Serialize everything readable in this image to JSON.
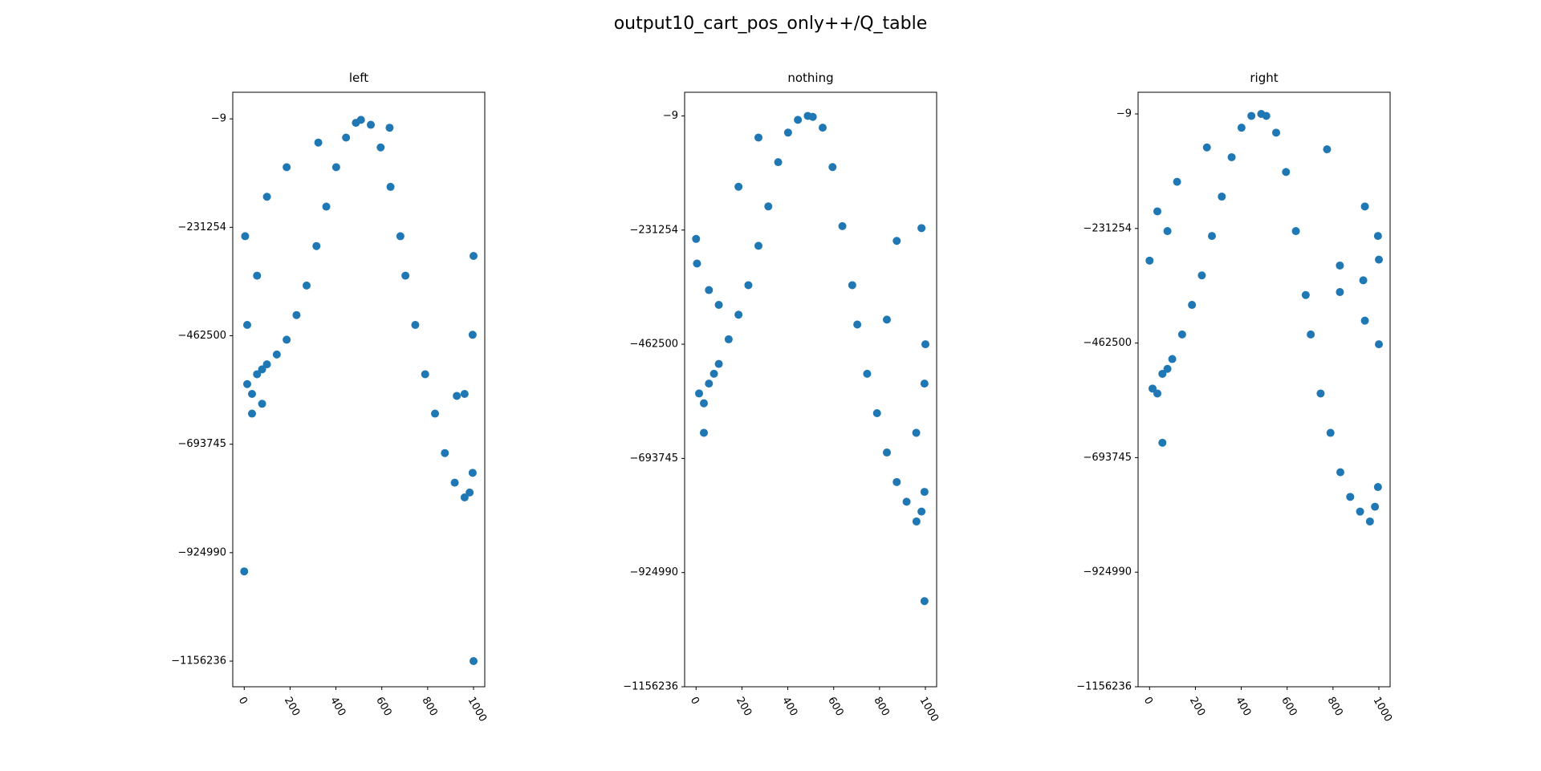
{
  "title": "output10_cart_pos_only++/Q_table",
  "chart_data": [
    {
      "type": "scatter",
      "title": "left",
      "color": "#1f77b4",
      "xlim": [
        -50,
        1049
      ],
      "ylim": [
        -1210900,
        56750
      ],
      "xticks": [
        0,
        200,
        400,
        600,
        800,
        1000
      ],
      "yticks": [
        {
          "value": -9,
          "label": "−9"
        },
        {
          "value": -231254,
          "label": "−231254"
        },
        {
          "value": -462500,
          "label": "−462500"
        },
        {
          "value": -693745,
          "label": "−693745"
        },
        {
          "value": -924990,
          "label": "−924990"
        },
        {
          "value": -1156236,
          "label": "−1156236"
        }
      ],
      "x": [
        13,
        34,
        56,
        78,
        99,
        142,
        185,
        228,
        272,
        315,
        358,
        401,
        444,
        487,
        509,
        552,
        595,
        638,
        681,
        703,
        746,
        789,
        832,
        875,
        918,
        961,
        983,
        996,
        0,
        1000,
        1000,
        4,
        13,
        56,
        99,
        185,
        323,
        634,
        996,
        961,
        927,
        34,
        78
      ],
      "values": [
        -565500,
        -586500,
        -544500,
        -534000,
        -523400,
        -502400,
        -470900,
        -418300,
        -355300,
        -271200,
        -187100,
        -103000,
        -39900,
        -8400,
        -2100,
        -12600,
        -60900,
        -145000,
        -250200,
        -334300,
        -439400,
        -544500,
        -628500,
        -712600,
        -775700,
        -807200,
        -796700,
        -754700,
        -964900,
        -1156200,
        -292200,
        -250200,
        -439400,
        -334300,
        -166100,
        -103000,
        -50500,
        -18900,
        -460400,
        -586500,
        -590700,
        -628500,
        -607500
      ]
    },
    {
      "type": "scatter",
      "title": "nothing",
      "color": "#1f77b4",
      "xlim": [
        -50,
        1049
      ],
      "ylim": [
        -1156236,
        47840
      ],
      "xticks": [
        0,
        200,
        400,
        600,
        800,
        1000
      ],
      "yticks": [
        {
          "value": -9,
          "label": "−9"
        },
        {
          "value": -231254,
          "label": "−231254"
        },
        {
          "value": -462500,
          "label": "−462500"
        },
        {
          "value": -693745,
          "label": "−693745"
        },
        {
          "value": -924990,
          "label": "−924990"
        },
        {
          "value": -1156236,
          "label": "−1156236"
        }
      ],
      "x": [
        13,
        34,
        56,
        78,
        99,
        142,
        185,
        228,
        272,
        315,
        358,
        401,
        444,
        487,
        509,
        552,
        595,
        638,
        681,
        703,
        746,
        789,
        832,
        875,
        918,
        961,
        983,
        996,
        0,
        4,
        996,
        983,
        1000,
        875,
        832,
        56,
        99,
        185,
        272,
        996,
        960,
        34
      ],
      "values": [
        -562200,
        -582100,
        -542200,
        -522300,
        -502400,
        -452500,
        -402700,
        -342900,
        -263100,
        -183400,
        -93700,
        -33900,
        -8000,
        -9,
        -2000,
        -23900,
        -103700,
        -223300,
        -342900,
        -422600,
        -522300,
        -602100,
        -681800,
        -741600,
        -781500,
        -821400,
        -801400,
        -761500,
        -249200,
        -299000,
        -982800,
        -227300,
        -462500,
        -253200,
        -412600,
        -352800,
        -382800,
        -143500,
        -43900,
        -542200,
        -641900,
        -641900
      ]
    },
    {
      "type": "scatter",
      "title": "right",
      "color": "#1f77b4",
      "xlim": [
        -50,
        1049
      ],
      "ylim": [
        -1156236,
        43700
      ],
      "xticks": [
        0,
        200,
        400,
        600,
        800,
        1000
      ],
      "yticks": [
        {
          "value": -9,
          "label": "−9"
        },
        {
          "value": -231254,
          "label": "−231254"
        },
        {
          "value": -462500,
          "label": "−462500"
        },
        {
          "value": -693745,
          "label": "−693745"
        },
        {
          "value": -924990,
          "label": "−924990"
        },
        {
          "value": -1156236,
          "label": "−1156236"
        }
      ],
      "x": [
        13,
        34,
        56,
        78,
        99,
        142,
        185,
        228,
        272,
        315,
        358,
        401,
        444,
        487,
        509,
        552,
        595,
        638,
        681,
        703,
        746,
        789,
        832,
        875,
        918,
        961,
        983,
        996,
        0,
        34,
        78,
        774,
        939,
        996,
        1000,
        830,
        830,
        932,
        939,
        1000,
        120,
        250,
        56
      ],
      "values": [
        -554400,
        -564300,
        -524600,
        -514600,
        -494800,
        -445100,
        -385500,
        -325900,
        -246400,
        -166900,
        -87400,
        -27800,
        -4000,
        -9,
        -4000,
        -37800,
        -117200,
        -236500,
        -365600,
        -445100,
        -564300,
        -643800,
        -723300,
        -773000,
        -802700,
        -822600,
        -792800,
        -753100,
        -296100,
        -196700,
        -236500,
        -71500,
        -186800,
        -246400,
        -294100,
        -306000,
        -359600,
        -335800,
        -417300,
        -465000,
        -137100,
        -67600,
        -663700
      ]
    }
  ]
}
